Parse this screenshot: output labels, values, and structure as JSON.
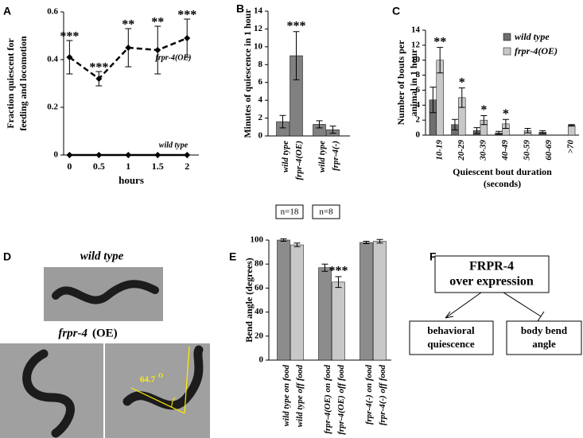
{
  "chart_data": [
    {
      "type": "line",
      "panel": "A",
      "ylabel": [
        "Fraction quiescent for",
        "feeding and locomotion"
      ],
      "xlabel": "hours",
      "x": [
        0,
        0.5,
        1,
        1.5,
        2
      ],
      "xlim": [
        -0.1,
        2.2
      ],
      "xticks": [
        0,
        0.5,
        1,
        1.5,
        2
      ],
      "ylim": [
        0,
        0.6
      ],
      "yticks": [
        0,
        0.2,
        0.4,
        0.6
      ],
      "series": [
        {
          "name": "frpr-4(OE)",
          "color": "#000000",
          "dashed": true,
          "values": [
            0.41,
            0.32,
            0.45,
            0.44,
            0.49
          ],
          "errors": [
            0.07,
            0.03,
            0.08,
            0.1,
            0.08
          ]
        },
        {
          "name": "wild type",
          "color": "#000000",
          "dashed": false,
          "values": [
            0,
            0,
            0,
            0,
            0
          ]
        }
      ],
      "annotations": [
        {
          "index": 0,
          "text": "***"
        },
        {
          "index": 1,
          "text": "***"
        },
        {
          "index": 2,
          "text": "**"
        },
        {
          "index": 3,
          "text": "**"
        },
        {
          "index": 4,
          "text": "***"
        }
      ]
    },
    {
      "type": "bar",
      "panel": "B",
      "ylabel": [
        "Minutes of quiescence in 1 hour"
      ],
      "categories": [
        "wild type",
        "frpr-4(OE)",
        "wild type",
        "frpr-4(-)"
      ],
      "values": [
        1.6,
        9.0,
        1.3,
        0.7
      ],
      "errors": [
        0.7,
        2.7,
        0.4,
        0.4
      ],
      "color": "#808080",
      "ylim": [
        0,
        14
      ],
      "yticks": [
        0,
        2,
        4,
        6,
        8,
        10,
        12,
        14
      ],
      "annotations": [
        {
          "index": 1,
          "text": "***"
        }
      ],
      "groups": [
        {
          "label": "n=18",
          "from": 0,
          "to": 1
        },
        {
          "label": "n=8",
          "from": 2,
          "to": 3
        }
      ]
    },
    {
      "type": "bar",
      "panel": "C",
      "ylabel": [
        "Number of bouts per",
        "animal in 1 hour"
      ],
      "xlabel": [
        "Quiescent bout duration",
        "(seconds)"
      ],
      "categories": [
        "10-19",
        "20-29",
        "30-39",
        "40-49",
        "50-59",
        "60-69",
        ">70"
      ],
      "series": [
        {
          "name": "wild type",
          "color": "#6e6e6e",
          "values": [
            4.7,
            1.4,
            0.6,
            0.3,
            0,
            0.4,
            0
          ],
          "errors": [
            1.7,
            0.7,
            0.4,
            0.2,
            0,
            0.2,
            0
          ]
        },
        {
          "name": "frpr-4(OE)",
          "color": "#c8c8c8",
          "values": [
            10,
            5,
            2,
            1.5,
            0.6,
            0,
            1.3
          ],
          "errors": [
            1.7,
            1.3,
            0.6,
            0.6,
            0.3,
            0,
            0.1
          ]
        }
      ],
      "ylim": [
        0,
        14
      ],
      "yticks": [
        0,
        2,
        4,
        6,
        8,
        10,
        12,
        14
      ],
      "legend": "upper right",
      "annotations": [
        {
          "index": 0,
          "text": "**"
        },
        {
          "index": 1,
          "text": "*"
        },
        {
          "index": 2,
          "text": "*"
        },
        {
          "index": 3,
          "text": "*"
        }
      ]
    },
    {
      "type": "bar",
      "panel": "E",
      "ylabel": [
        "Bend angle (degrees)"
      ],
      "categories": [
        "wild type on food",
        "wild type off food",
        "frpr-4(OE) on food",
        "frpr-4(OE) off food",
        "frpr-4(-) on food",
        "frpr-4(-) off food"
      ],
      "values": [
        100,
        96,
        77,
        65,
        98,
        99
      ],
      "errors": [
        1,
        1.5,
        3,
        4.5,
        1,
        1.5
      ],
      "colors": [
        "#8c8c8c",
        "#c8c8c8",
        "#8c8c8c",
        "#c8c8c8",
        "#8c8c8c",
        "#c8c8c8"
      ],
      "ylim": [
        0,
        100
      ],
      "yticks": [
        0,
        20,
        40,
        60,
        80,
        100
      ],
      "annotations": [
        {
          "index": 3,
          "text": "***"
        }
      ]
    }
  ],
  "image_panel": {
    "label": "D",
    "top_caption": "wild type",
    "bottom_caption": [
      "frpr-4",
      "(OE)"
    ],
    "angle": "64.7",
    "angle_unit": "O"
  },
  "diagram": {
    "label": "F",
    "top": [
      "FRPR-4",
      "over expression"
    ],
    "left": [
      "behavioral",
      "quiescence"
    ],
    "right": [
      "body bend",
      "angle"
    ]
  }
}
